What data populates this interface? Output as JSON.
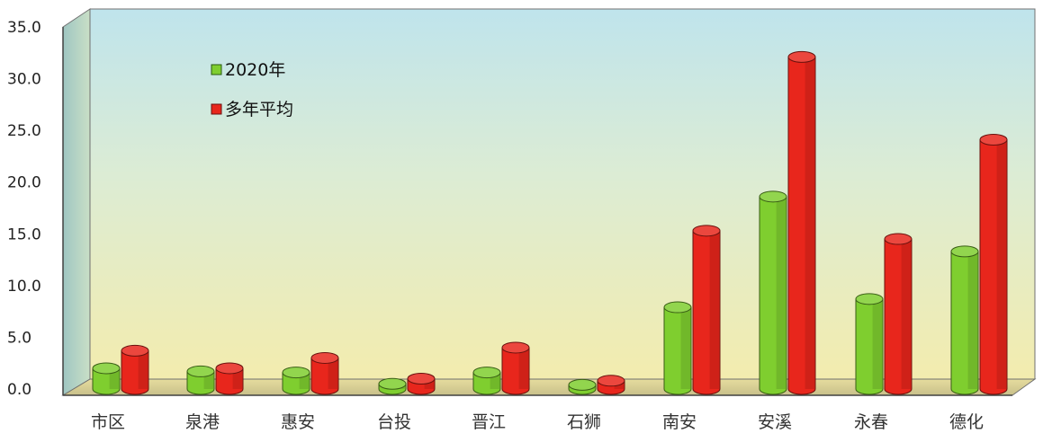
{
  "chart_data": {
    "type": "bar",
    "categories": [
      "市区",
      "泉港",
      "惠安",
      "台投",
      "晋江",
      "石狮",
      "南安",
      "安溪",
      "永春",
      "德化"
    ],
    "series": [
      {
        "name": "2020年",
        "values": [
          2.0,
          1.7,
          1.6,
          0.5,
          1.6,
          0.4,
          7.9,
          18.6,
          8.7,
          13.3
        ],
        "color": "#7fce2f"
      },
      {
        "name": "多年平均",
        "values": [
          3.7,
          2.0,
          3.0,
          1.0,
          4.0,
          0.8,
          15.3,
          32.1,
          14.5,
          24.1
        ],
        "color": "#e8261c"
      }
    ],
    "ylim": [
      0,
      35
    ],
    "yticks": [
      "0.0",
      "5.0",
      "10.0",
      "15.0",
      "20.0",
      "25.0",
      "30.0",
      "35.0"
    ],
    "title": "",
    "xlabel": "",
    "ylabel": "",
    "grid": false,
    "legend_position": "top-left"
  }
}
